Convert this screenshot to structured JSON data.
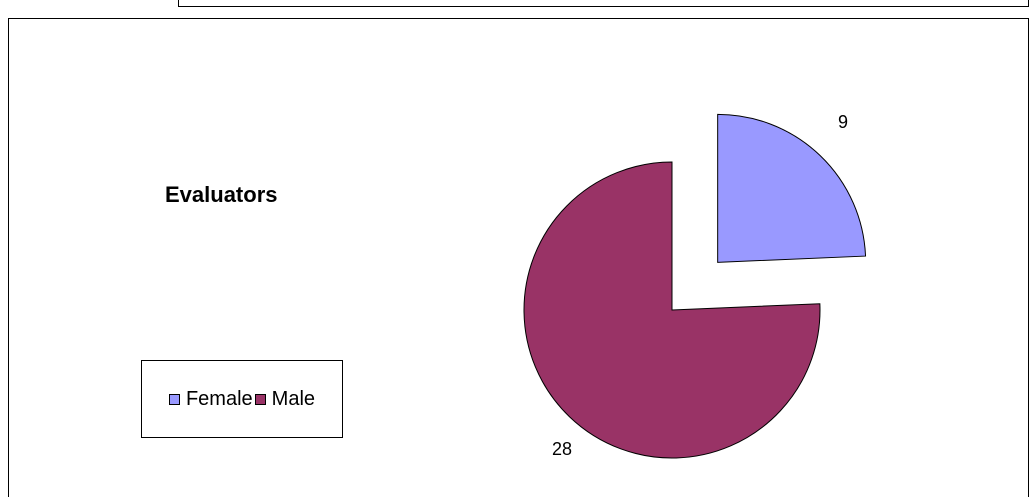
{
  "chart_data": {
    "type": "pie",
    "title": "Evaluators",
    "categories": [
      "Female",
      "Male"
    ],
    "values": [
      9,
      28
    ],
    "colors": [
      "#9999ff",
      "#993366"
    ],
    "exploded": [
      "Female"
    ],
    "legend_placement": "left",
    "data_labels": [
      "9",
      "28"
    ]
  }
}
